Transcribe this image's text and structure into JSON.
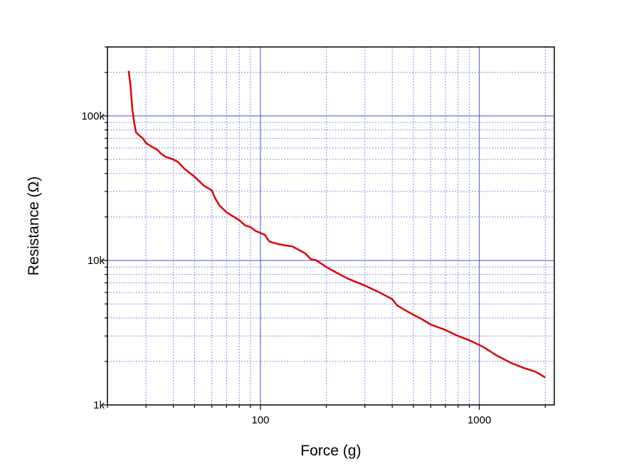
{
  "chart_data": {
    "type": "line",
    "xlabel": "Force (g)",
    "ylabel": "Resistance (Ω)",
    "xscale": "log",
    "yscale": "log",
    "xlim": [
      20,
      2200
    ],
    "ylim": [
      1000,
      300000
    ],
    "grid": true,
    "x_ticks": [
      {
        "value": 100,
        "label": "100"
      },
      {
        "value": 1000,
        "label": "1000"
      }
    ],
    "y_ticks": [
      {
        "value": 1000,
        "label": "1k"
      },
      {
        "value": 10000,
        "label": "10k"
      },
      {
        "value": 100000,
        "label": "100k"
      }
    ],
    "series": [
      {
        "color": "#e00000",
        "x": [
          25,
          25.5,
          26,
          26.5,
          27,
          28,
          29,
          30,
          32,
          34,
          35,
          37,
          40,
          42,
          45,
          50,
          55,
          60,
          62,
          65,
          70,
          80,
          85,
          90,
          95,
          100,
          105,
          108,
          110,
          120,
          130,
          140,
          150,
          160,
          170,
          180,
          200,
          220,
          250,
          300,
          350,
          400,
          420,
          450,
          500,
          550,
          600,
          700,
          800,
          900,
          1000,
          1050,
          1200,
          1400,
          1600,
          1800,
          2000
        ],
        "y": [
          205000,
          160000,
          110000,
          90000,
          77000,
          73000,
          70000,
          65000,
          61000,
          58000,
          55000,
          52000,
          50000,
          48000,
          43000,
          38000,
          33000,
          30500,
          27000,
          24000,
          21500,
          19000,
          17500,
          17000,
          16000,
          15500,
          15000,
          14000,
          13500,
          13000,
          12700,
          12500,
          11800,
          11200,
          10200,
          10000,
          9000,
          8300,
          7500,
          6700,
          6000,
          5400,
          4900,
          4600,
          4200,
          3900,
          3600,
          3300,
          3000,
          2800,
          2600,
          2500,
          2200,
          1950,
          1800,
          1700,
          1550
        ]
      }
    ]
  }
}
